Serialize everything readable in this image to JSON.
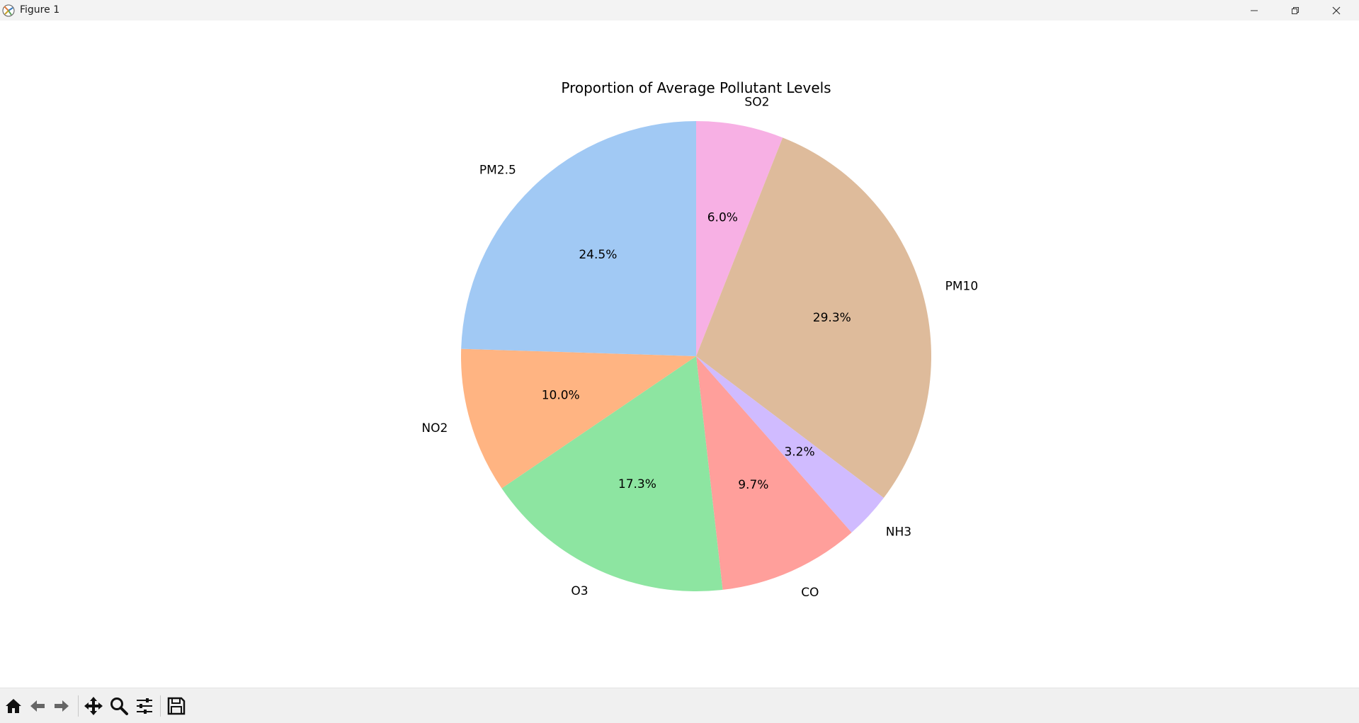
{
  "window": {
    "title": "Figure 1"
  },
  "toolbar": {
    "buttons": [
      {
        "name": "home",
        "icon": "home-icon"
      },
      {
        "name": "back",
        "icon": "arrow-left-icon"
      },
      {
        "name": "forward",
        "icon": "arrow-right-icon"
      },
      {
        "name": "pan",
        "icon": "move-icon"
      },
      {
        "name": "zoom",
        "icon": "magnifier-icon"
      },
      {
        "name": "configure",
        "icon": "sliders-icon"
      },
      {
        "name": "save",
        "icon": "floppy-disk-icon"
      }
    ]
  },
  "chart_data": {
    "type": "pie",
    "title": "Proportion of Average Pollutant Levels",
    "start_angle_deg": 90,
    "direction": "clockwise",
    "slices": [
      {
        "label": "SO2",
        "value": 6.0,
        "pct_text": "6.0%",
        "color": "#f7b0e4"
      },
      {
        "label": "PM10",
        "value": 29.3,
        "pct_text": "29.3%",
        "color": "#debb9b"
      },
      {
        "label": "NH3",
        "value": 3.2,
        "pct_text": "3.2%",
        "color": "#d0bbff"
      },
      {
        "label": "CO",
        "value": 9.7,
        "pct_text": "9.7%",
        "color": "#ff9f9b"
      },
      {
        "label": "O3",
        "value": 17.3,
        "pct_text": "17.3%",
        "color": "#8de5a1"
      },
      {
        "label": "NO2",
        "value": 10.0,
        "pct_text": "10.0%",
        "color": "#ffb482"
      },
      {
        "label": "PM2.5",
        "value": 24.5,
        "pct_text": "24.5%",
        "color": "#a1c9f4"
      }
    ]
  }
}
